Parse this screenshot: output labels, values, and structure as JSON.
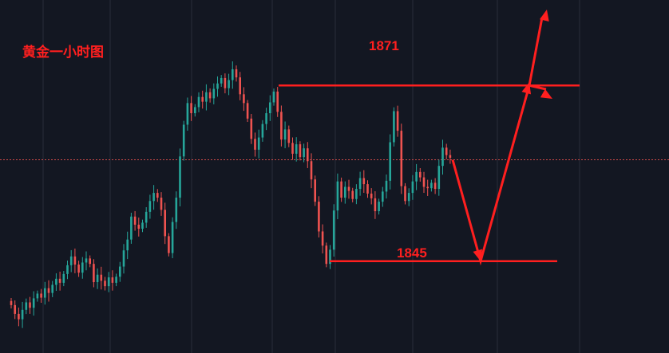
{
  "chart_data": {
    "type": "candlestick",
    "title": "黄金一小时图",
    "colors": {
      "background": "#131722",
      "grid": "#2a2e39",
      "up": "#26a69a",
      "down": "#ef5350",
      "annotation": "#ff1f1f",
      "price_line": "#ef5350"
    },
    "ylim": [
      1832,
      1882
    ],
    "current_price": 1860,
    "resistance": {
      "label": "1871",
      "value": 1871
    },
    "support": {
      "label": "1845",
      "value": 1845
    },
    "forecast_path": [
      1860,
      1845,
      1871
    ],
    "forecast_branches": [
      "up",
      "down"
    ],
    "closes": [
      1838.5,
      1837.2,
      1836.4,
      1837.8,
      1838.9,
      1838.1,
      1839.5,
      1840.2,
      1839.6,
      1841.0,
      1840.3,
      1841.5,
      1842.4,
      1841.8,
      1843.1,
      1844.4,
      1845.7,
      1844.5,
      1843.3,
      1844.8,
      1845.4,
      1844.6,
      1841.9,
      1843.0,
      1842.1,
      1841.3,
      1842.6,
      1841.8,
      1842.7,
      1844.2,
      1846.6,
      1848.2,
      1851.6,
      1850.4,
      1849.8,
      1850.7,
      1852.3,
      1853.9,
      1855.1,
      1854.4,
      1852.6,
      1848.7,
      1846.2,
      1850.8,
      1854.4,
      1860.5,
      1865.2,
      1868.4,
      1866.9,
      1867.8,
      1869.3,
      1868.6,
      1870.0,
      1869.1,
      1870.5,
      1871.3,
      1872.1,
      1870.6,
      1871.8,
      1873.4,
      1872.2,
      1869.7,
      1868.4,
      1866.1,
      1863.1,
      1861.5,
      1863.3,
      1865.3,
      1866.9,
      1868.5,
      1870.1,
      1867.1,
      1863.0,
      1864.5,
      1862.5,
      1860.9,
      1862.3,
      1860.4,
      1861.7,
      1859.8,
      1857.1,
      1853.8,
      1849.4,
      1847.3,
      1844.6,
      1846.7,
      1852.5,
      1856.8,
      1854.4,
      1856.0,
      1855.4,
      1854.2,
      1855.7,
      1857.3,
      1856.4,
      1855.0,
      1854.3,
      1852.4,
      1853.8,
      1855.3,
      1856.9,
      1862.6,
      1867.2,
      1864.3,
      1856.1,
      1853.9,
      1855.1,
      1856.8,
      1858.2,
      1857.4,
      1856.0,
      1855.8,
      1856.6,
      1855.7,
      1859.1,
      1861.8,
      1860.7,
      1860.3
    ]
  }
}
